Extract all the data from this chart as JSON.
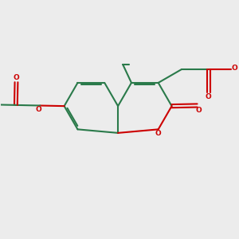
{
  "bg_color": "#ececec",
  "bond_color": "#2a7a4a",
  "oxygen_color": "#cc0000",
  "line_width": 1.5,
  "fig_size": [
    3.0,
    3.0
  ],
  "dpi": 100,
  "xlim": [
    -4.5,
    5.5
  ],
  "ylim": [
    -3.5,
    3.5
  ]
}
